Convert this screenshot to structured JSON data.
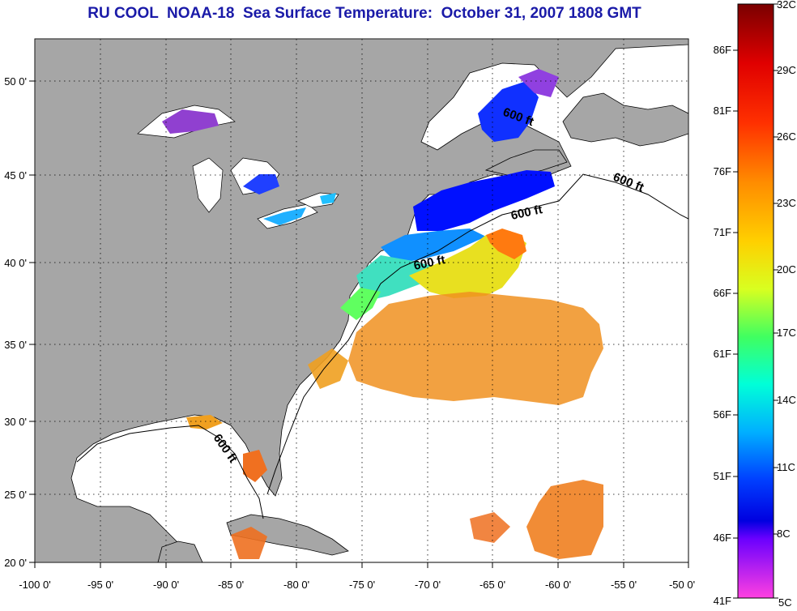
{
  "title": "RU COOL  NOAA-18  Sea Surface Temperature:  October 31, 2007 1808 GMT",
  "map": {
    "lon_labels": [
      "-100 0'",
      "-95 0'",
      "-90 0'",
      "-85 0'",
      "-80 0'",
      "-75 0'",
      "-70 0'",
      "-65 0'",
      "-60 0'",
      "-55 0'",
      "-50 0'"
    ],
    "lat_labels": [
      "50 0'",
      "45 0'",
      "40 0'",
      "35 0'",
      "30 0'",
      "25 0'",
      "20 0'"
    ],
    "contour_labels": [
      "600 ft",
      "600 ft",
      "600 ft",
      "600 ft",
      "600 ft"
    ],
    "colors": {
      "land": "#a6a6a6",
      "ocean_no_data": "#ffffff",
      "grid": "#000000"
    }
  },
  "colorbar": {
    "fahrenheit_labels": [
      "86F",
      "81F",
      "76F",
      "71F",
      "66F",
      "61F",
      "56F",
      "51F",
      "46F",
      "41F"
    ],
    "celsius_labels": [
      "32C",
      "29C",
      "26C",
      "23C",
      "20C",
      "17C",
      "14C",
      "11C",
      "8C",
      "5C"
    ],
    "colors": [
      "#8b0000",
      "#ff2000",
      "#ff8c00",
      "#ffe000",
      "#90ee20",
      "#00ffd0",
      "#00a0ff",
      "#0000ff",
      "#8000ff",
      "#ff33cc"
    ]
  }
}
